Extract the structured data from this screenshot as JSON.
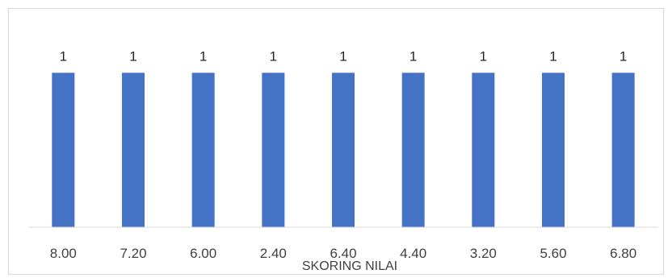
{
  "chart_data": {
    "type": "bar",
    "title": "",
    "xlabel": "SKORING NILAI",
    "ylabel": "",
    "categories": [
      "8.00",
      "7.20",
      "6.00",
      "2.40",
      "6.40",
      "4.40",
      "3.20",
      "5.60",
      "6.80"
    ],
    "values": [
      1,
      1,
      1,
      1,
      1,
      1,
      1,
      1,
      1
    ],
    "data_labels": [
      "1",
      "1",
      "1",
      "1",
      "1",
      "1",
      "1",
      "1",
      "1"
    ],
    "ylim": [
      0,
      1.2
    ],
    "grid": false,
    "legend": "none",
    "bar_color": "#4472c4",
    "axis_color": "#d9d9d9"
  }
}
